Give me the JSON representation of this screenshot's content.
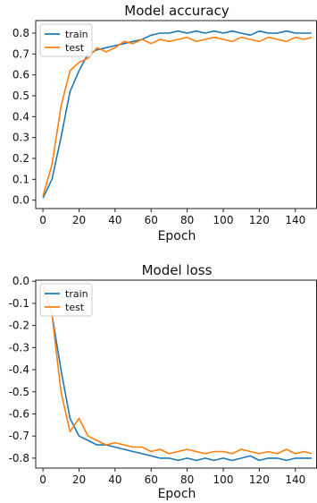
{
  "chart_data": [
    {
      "type": "line",
      "title": "Model accuracy",
      "xlabel": "Epoch",
      "ylabel": "",
      "xlim": [
        -4,
        152
      ],
      "ylim": [
        -0.04,
        0.86
      ],
      "xticks": [
        0,
        20,
        40,
        60,
        80,
        100,
        120,
        140
      ],
      "yticks": [
        0.0,
        0.1,
        0.2,
        0.3,
        0.4,
        0.5,
        0.6,
        0.7,
        0.8
      ],
      "ytick_labels": [
        "0.0",
        "0.1",
        "0.2",
        "0.3",
        "0.4",
        "0.5",
        "0.6",
        "0.7",
        "0.8"
      ],
      "grid": false,
      "legend_position": "upper-left",
      "series": [
        {
          "name": "train",
          "color": "#1f77b4",
          "x": [
            0,
            5,
            10,
            15,
            20,
            25,
            30,
            35,
            40,
            45,
            50,
            55,
            60,
            65,
            70,
            75,
            80,
            85,
            90,
            95,
            100,
            105,
            110,
            115,
            120,
            125,
            130,
            135,
            140,
            145,
            149
          ],
          "y": [
            0.01,
            0.1,
            0.3,
            0.52,
            0.62,
            0.7,
            0.72,
            0.73,
            0.74,
            0.75,
            0.76,
            0.77,
            0.79,
            0.8,
            0.8,
            0.81,
            0.8,
            0.81,
            0.8,
            0.81,
            0.8,
            0.81,
            0.8,
            0.79,
            0.81,
            0.8,
            0.8,
            0.81,
            0.8,
            0.8,
            0.8
          ]
        },
        {
          "name": "test",
          "color": "#ff7f0e",
          "x": [
            0,
            5,
            10,
            15,
            20,
            25,
            30,
            35,
            40,
            45,
            50,
            55,
            60,
            65,
            70,
            75,
            80,
            85,
            90,
            95,
            100,
            105,
            110,
            115,
            120,
            125,
            130,
            135,
            140,
            145,
            149
          ],
          "y": [
            0.02,
            0.17,
            0.45,
            0.62,
            0.66,
            0.68,
            0.73,
            0.71,
            0.73,
            0.76,
            0.75,
            0.77,
            0.75,
            0.77,
            0.76,
            0.77,
            0.78,
            0.76,
            0.77,
            0.78,
            0.77,
            0.76,
            0.78,
            0.77,
            0.76,
            0.78,
            0.77,
            0.76,
            0.78,
            0.77,
            0.78
          ]
        }
      ]
    },
    {
      "type": "line",
      "title": "Model loss",
      "xlabel": "Epoch",
      "ylabel": "",
      "xlim": [
        -4,
        152
      ],
      "ylim": [
        -0.845,
        0.005
      ],
      "xticks": [
        0,
        20,
        40,
        60,
        80,
        100,
        120,
        140
      ],
      "yticks": [
        0.0,
        -0.1,
        -0.2,
        -0.3,
        -0.4,
        -0.5,
        -0.6,
        -0.7,
        -0.8
      ],
      "ytick_labels": [
        "0.0",
        "-0.1",
        "-0.2",
        "-0.3",
        "-0.4",
        "-0.5",
        "-0.6",
        "-0.7",
        "-0.8"
      ],
      "grid": false,
      "legend_position": "upper-left",
      "series": [
        {
          "name": "train",
          "color": "#1f77b4",
          "x": [
            0,
            5,
            10,
            15,
            20,
            25,
            30,
            35,
            40,
            45,
            50,
            55,
            60,
            65,
            70,
            75,
            80,
            85,
            90,
            95,
            100,
            105,
            110,
            115,
            120,
            125,
            130,
            135,
            140,
            145,
            149
          ],
          "y": [
            -0.02,
            -0.15,
            -0.4,
            -0.62,
            -0.7,
            -0.72,
            -0.74,
            -0.74,
            -0.75,
            -0.76,
            -0.77,
            -0.78,
            -0.79,
            -0.8,
            -0.8,
            -0.81,
            -0.8,
            -0.81,
            -0.8,
            -0.81,
            -0.8,
            -0.81,
            -0.8,
            -0.79,
            -0.81,
            -0.8,
            -0.8,
            -0.81,
            -0.8,
            -0.8,
            -0.8
          ]
        },
        {
          "name": "test",
          "color": "#ff7f0e",
          "x": [
            0,
            5,
            10,
            15,
            20,
            25,
            30,
            35,
            40,
            45,
            50,
            55,
            60,
            65,
            70,
            75,
            80,
            85,
            90,
            95,
            100,
            105,
            110,
            115,
            120,
            125,
            130,
            135,
            140,
            145,
            149
          ],
          "y": [
            -0.02,
            -0.15,
            -0.5,
            -0.68,
            -0.62,
            -0.7,
            -0.72,
            -0.74,
            -0.73,
            -0.74,
            -0.75,
            -0.75,
            -0.77,
            -0.76,
            -0.78,
            -0.77,
            -0.76,
            -0.77,
            -0.78,
            -0.77,
            -0.77,
            -0.78,
            -0.76,
            -0.77,
            -0.78,
            -0.77,
            -0.78,
            -0.76,
            -0.78,
            -0.77,
            -0.78
          ]
        }
      ]
    }
  ]
}
